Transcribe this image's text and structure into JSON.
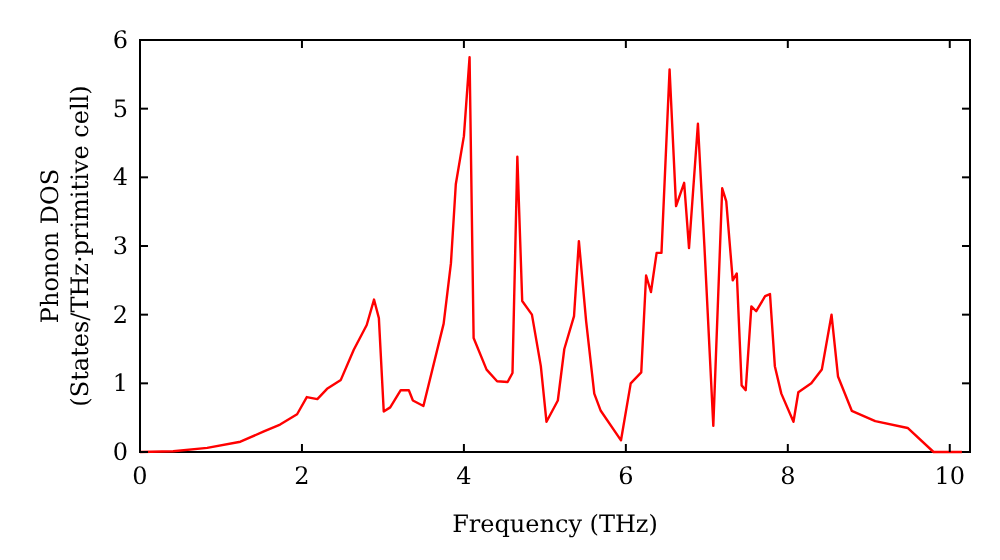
{
  "chart_data": {
    "type": "line",
    "xlabel": "Frequency (THz)",
    "ylabel": "Phonon DOS\n(States/THz·primitive cell)",
    "xlim": [
      0,
      10.25
    ],
    "ylim": [
      0,
      6
    ],
    "xticks": [
      0,
      2,
      4,
      6,
      8,
      10
    ],
    "yticks": [
      0,
      1,
      2,
      3,
      4,
      5,
      6
    ],
    "grid": false,
    "marker": "none",
    "line_style": "solid",
    "series": [
      {
        "color": "#ff0000",
        "x": [
          0,
          0.41,
          0.83,
          1.24,
          1.53,
          1.73,
          1.94,
          2.06,
          2.19,
          2.31,
          2.48,
          2.64,
          2.8,
          2.89,
          2.95,
          3.01,
          3.09,
          3.22,
          3.32,
          3.37,
          3.5,
          3.75,
          3.84,
          3.9,
          4.0,
          4.07,
          4.12,
          4.28,
          4.41,
          4.54,
          4.6,
          4.66,
          4.72,
          4.84,
          4.95,
          5.02,
          5.16,
          5.24,
          5.36,
          5.42,
          5.51,
          5.61,
          5.69,
          5.94,
          6.06,
          6.19,
          6.25,
          6.31,
          6.38,
          6.44,
          6.54,
          6.62,
          6.72,
          6.78,
          6.89,
          6.97,
          7.08,
          7.19,
          7.24,
          7.32,
          7.37,
          7.43,
          7.48,
          7.55,
          7.61,
          7.72,
          7.78,
          7.84,
          7.92,
          8.07,
          8.13,
          8.29,
          8.42,
          8.54,
          8.62,
          8.79,
          9.08,
          9.48,
          9.8,
          10.15
        ],
        "values": [
          0,
          0.01,
          0.06,
          0.15,
          0.3,
          0.4,
          0.55,
          0.8,
          0.77,
          0.92,
          1.05,
          1.49,
          1.85,
          2.22,
          1.95,
          0.59,
          0.65,
          0.9,
          0.9,
          0.75,
          0.67,
          1.87,
          2.75,
          3.9,
          4.6,
          5.75,
          1.66,
          1.2,
          1.03,
          1.02,
          1.15,
          4.3,
          2.2,
          2.0,
          1.25,
          0.44,
          0.75,
          1.5,
          1.98,
          3.07,
          1.9,
          0.85,
          0.6,
          0.17,
          1.0,
          1.16,
          2.57,
          2.33,
          2.9,
          2.9,
          5.57,
          3.58,
          3.92,
          2.97,
          4.78,
          3.0,
          0.38,
          3.84,
          3.65,
          2.5,
          2.6,
          0.97,
          0.9,
          2.12,
          2.05,
          2.27,
          2.3,
          1.25,
          0.85,
          0.44,
          0.87,
          1.0,
          1.2,
          2.0,
          1.1,
          0.6,
          0.45,
          0.35,
          0,
          0
        ]
      }
    ]
  }
}
